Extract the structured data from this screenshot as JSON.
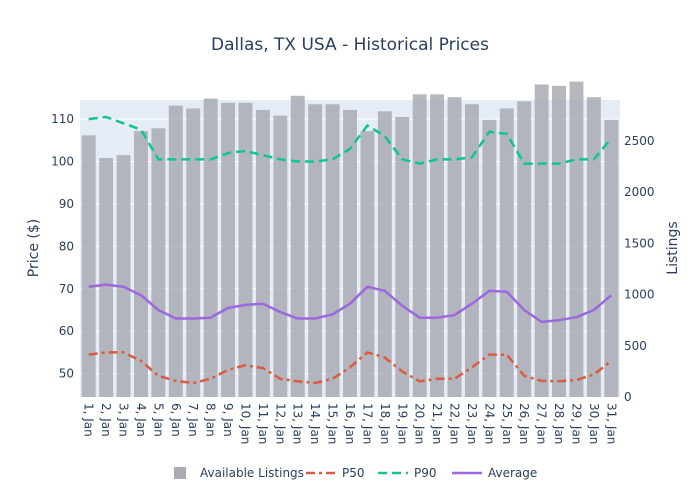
{
  "chart_data": {
    "type": "bar",
    "title": "Dallas, TX USA - Historical Prices",
    "y_left_label": "Price ($)",
    "y_right_label": "Listings",
    "y_left_range": [
      44.5,
      114.5
    ],
    "y_right_range": [
      500,
      2600
    ],
    "y_right_range_display": [
      0,
      2900
    ],
    "y_left_ticks": [
      50,
      60,
      70,
      80,
      90,
      100,
      110
    ],
    "y_right_ticks": [
      0,
      500,
      1000,
      1500,
      2000,
      2500
    ],
    "categories": [
      "1, Jan",
      "2, Jan",
      "3, Jan",
      "4, Jan",
      "5, Jan",
      "6, Jan",
      "7, Jan",
      "8, Jan",
      "9, Jan",
      "10, Jan",
      "11, Jan",
      "12, Jan",
      "13, Jan",
      "14, Jan",
      "15, Jan",
      "16, Jan",
      "17, Jan",
      "18, Jan",
      "19, Jan",
      "20, Jan",
      "21, Jan",
      "22, Jan",
      "23, Jan",
      "24, Jan",
      "25, Jan",
      "26, Jan",
      "27, Jan",
      "28, Jan",
      "29, Jan",
      "30, Jan",
      "31, Jan"
    ],
    "bars": {
      "name": "Available Listings",
      "color": "#a9acb3",
      "values": [
        2350,
        2190,
        2210,
        2380,
        2400,
        2560,
        2540,
        2610,
        2580,
        2580,
        2530,
        2490,
        2630,
        2570,
        2570,
        2530,
        2380,
        2520,
        2480,
        2640,
        2640,
        2620,
        2570,
        2460,
        2540,
        2590,
        2710,
        2700,
        2730,
        2620,
        2460
      ]
    },
    "series": [
      {
        "name": "P50",
        "color": "#dd5b3e",
        "dash": "dashdot",
        "values": [
          54.5,
          55,
          55,
          53,
          49.5,
          48.3,
          47.8,
          48.8,
          50.9,
          52,
          51.3,
          48.8,
          48.2,
          47.8,
          48.8,
          51.5,
          55,
          53.8,
          50.5,
          48.2,
          48.8,
          48.8,
          51.5,
          54.5,
          54.5,
          49.5,
          48.3,
          48.2,
          48.5,
          49.8,
          53
        ]
      },
      {
        "name": "P90",
        "color": "#10c68f",
        "dash": "dash",
        "values": [
          110,
          110.5,
          109,
          107.5,
          100.5,
          100.5,
          100.5,
          100.5,
          102,
          102.5,
          101.5,
          100.5,
          100,
          100,
          100.5,
          103,
          108.5,
          106,
          100.5,
          99.5,
          100.5,
          100.5,
          101,
          107,
          106.5,
          99.5,
          99.5,
          99.5,
          100.5,
          100.5,
          105.5
        ]
      },
      {
        "name": "Average",
        "color": "#9d67e0",
        "dash": "solid",
        "values": [
          70.5,
          71,
          70.5,
          68.5,
          65,
          63,
          63,
          63.2,
          65.5,
          66.2,
          66.5,
          64.5,
          63,
          63,
          64,
          66.5,
          70.5,
          69.5,
          66,
          63.2,
          63.2,
          63.8,
          66.5,
          69.5,
          69.3,
          65,
          62.2,
          62.6,
          63.3,
          65,
          68.5
        ]
      }
    ],
    "legend": {
      "placement": "bottom",
      "orientation": "horizontal"
    },
    "colors": {
      "plot_bg": "#e5ecf6",
      "grid": "#ffffff",
      "text": "#2a3f5f"
    }
  }
}
